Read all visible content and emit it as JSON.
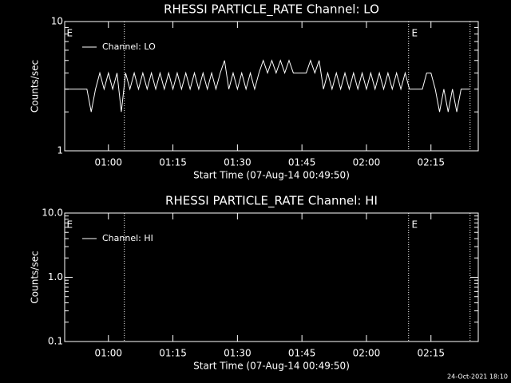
{
  "chart_data": [
    {
      "type": "line",
      "title": "RHESSI PARTICLE_RATE Channel: LO",
      "x_label": "Start Time (07-Aug-14 00:49:50)",
      "y_label": "Counts/sec",
      "log_y": true,
      "xlim": [
        49.83,
        146
      ],
      "ylim": [
        1,
        10
      ],
      "xticks": [
        {
          "value": 60,
          "label": "01:00"
        },
        {
          "value": 75,
          "label": "01:15"
        },
        {
          "value": 90,
          "label": "01:30"
        },
        {
          "value": 105,
          "label": "01:45"
        },
        {
          "value": 120,
          "label": "02:00"
        },
        {
          "value": 135,
          "label": "02:15"
        }
      ],
      "yticks": [
        1,
        10
      ],
      "yminorticks": [
        2,
        3,
        4,
        5,
        6,
        7,
        8,
        9
      ],
      "vlines": [
        63.7,
        129.8,
        144.1
      ],
      "annotations": [
        {
          "text": "E",
          "x": 50.3
        },
        {
          "text": "E",
          "x": 130.5
        }
      ],
      "x": [
        50,
        51,
        52,
        53,
        54,
        55,
        56,
        57,
        58,
        59,
        60,
        61,
        62,
        63,
        64,
        65,
        66,
        67,
        68,
        69,
        70,
        71,
        72,
        73,
        74,
        75,
        76,
        77,
        78,
        79,
        80,
        81,
        82,
        83,
        84,
        85,
        86,
        87,
        88,
        89,
        90,
        91,
        92,
        93,
        94,
        95,
        96,
        97,
        98,
        99,
        100,
        101,
        102,
        103,
        104,
        105,
        106,
        107,
        108,
        109,
        110,
        111,
        112,
        113,
        114,
        115,
        116,
        117,
        118,
        119,
        120,
        121,
        122,
        123,
        124,
        125,
        126,
        127,
        128,
        129,
        130,
        131,
        132,
        133,
        134,
        135,
        136,
        137,
        138,
        139,
        140,
        141,
        142,
        143,
        144
      ],
      "series": [
        {
          "name": "Channel: LO",
          "color": "#ffffff",
          "values": [
            3,
            3,
            3,
            3,
            3,
            3,
            2,
            3,
            4,
            3,
            4,
            3,
            4,
            2,
            4,
            3,
            4,
            3,
            4,
            3,
            4,
            3,
            4,
            3,
            4,
            3,
            4,
            3,
            4,
            3,
            4,
            3,
            4,
            3,
            4,
            3,
            4,
            5,
            3,
            4,
            3,
            4,
            3,
            4,
            3,
            4,
            5,
            4,
            5,
            4,
            5,
            4,
            5,
            4,
            4,
            4,
            4,
            5,
            4,
            5,
            3,
            4,
            3,
            4,
            3,
            4,
            3,
            4,
            3,
            4,
            3,
            4,
            3,
            4,
            3,
            4,
            3,
            4,
            3,
            4,
            3,
            3,
            3,
            3,
            4,
            4,
            3,
            2,
            3,
            2,
            3,
            2,
            3,
            3,
            3
          ]
        }
      ]
    },
    {
      "type": "line",
      "title": "RHESSI PARTICLE_RATE Channel: HI",
      "x_label": "Start Time (07-Aug-14 00:49:50)",
      "y_label": "Counts/sec",
      "log_y": true,
      "xlim": [
        49.83,
        146
      ],
      "ylim": [
        0.1,
        10
      ],
      "xticks": [
        {
          "value": 60,
          "label": "01:00"
        },
        {
          "value": 75,
          "label": "01:15"
        },
        {
          "value": 90,
          "label": "01:30"
        },
        {
          "value": 105,
          "label": "01:45"
        },
        {
          "value": 120,
          "label": "02:00"
        },
        {
          "value": 135,
          "label": "02:15"
        }
      ],
      "yticks": [
        0.1,
        {
          "value": 1,
          "label": "1.0"
        },
        {
          "value": 10,
          "label": "10.0"
        }
      ],
      "yminorticks": [
        0.2,
        0.3,
        0.4,
        0.5,
        0.6,
        0.7,
        0.8,
        0.9,
        2,
        3,
        4,
        5,
        6,
        7,
        8,
        9
      ],
      "vlines": [
        63.7,
        129.8,
        144.1
      ],
      "annotations": [
        {
          "text": "E",
          "x": 50.3
        },
        {
          "text": "E",
          "x": 130.5
        }
      ],
      "x": [],
      "series": [
        {
          "name": "Channel: HI",
          "color": "#ffffff",
          "values": []
        }
      ]
    }
  ],
  "footer": "24-Oct-2021 18:10"
}
